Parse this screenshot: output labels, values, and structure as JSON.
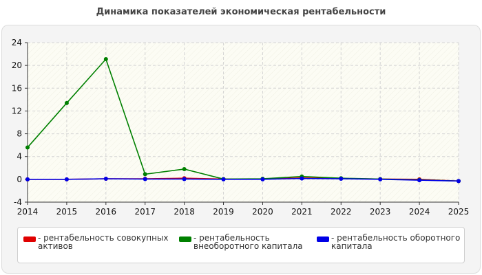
{
  "chart_data": {
    "type": "line",
    "title": "Динамика показателей экономическая рентабельности",
    "x": [
      2014,
      2015,
      2016,
      2017,
      2018,
      2019,
      2020,
      2021,
      2022,
      2023,
      2024,
      2025
    ],
    "ylim": [
      -4,
      24
    ],
    "yticks": [
      -4,
      0,
      4,
      8,
      12,
      16,
      20,
      24
    ],
    "grid": true,
    "legend_position": "bottom",
    "series": [
      {
        "name": "рентабельность совокупных активов",
        "color": "#e00000",
        "values": [
          0,
          0,
          0.1,
          0.1,
          0.2,
          0.05,
          0.05,
          0.25,
          0.15,
          0.05,
          0,
          -0.3
        ]
      },
      {
        "name": "рентабельность внеоборотного капитала",
        "color": "#008000",
        "values": [
          5.6,
          13.4,
          21.1,
          0.9,
          1.8,
          0.05,
          0.1,
          0.5,
          0.2,
          0.05,
          -0.1,
          -0.3
        ]
      },
      {
        "name": "рентабельность оборотного капитала",
        "color": "#0000e6",
        "values": [
          0,
          0,
          0.1,
          0.05,
          0.05,
          0,
          0,
          0.15,
          0.1,
          0,
          -0.15,
          -0.3
        ]
      }
    ]
  }
}
